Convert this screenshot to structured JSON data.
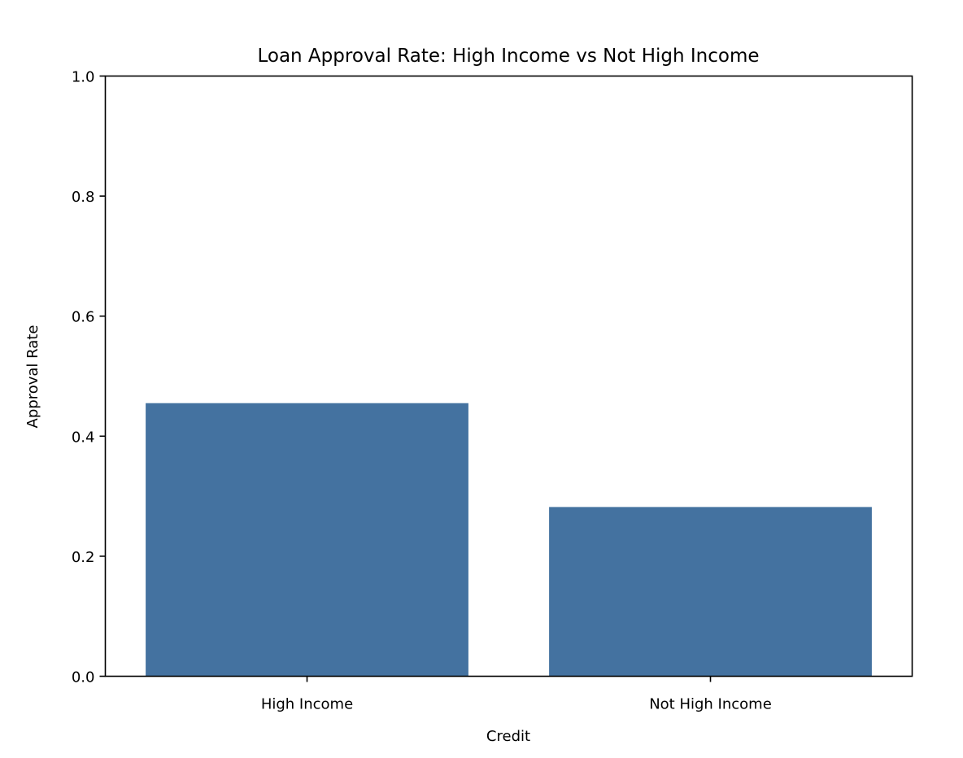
{
  "chart_data": {
    "type": "bar",
    "title": "Loan Approval Rate: High Income vs Not High Income",
    "xlabel": "Credit",
    "ylabel": "Approval Rate",
    "categories": [
      "High Income",
      "Not High Income"
    ],
    "values": [
      0.455,
      0.282
    ],
    "ylim": [
      0,
      1.0
    ],
    "yticks": [
      "0.0",
      "0.2",
      "0.4",
      "0.6",
      "0.8",
      "1.0"
    ],
    "grid": false,
    "legend": "none",
    "bar_color": "#4472a0"
  }
}
